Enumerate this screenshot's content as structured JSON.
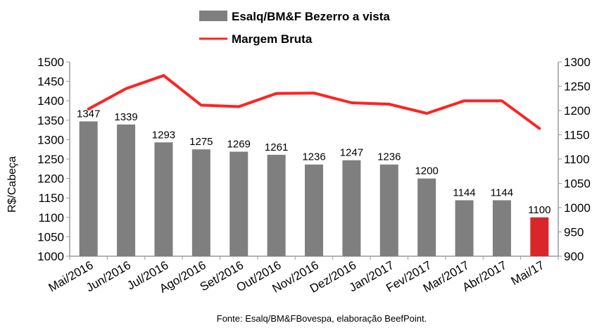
{
  "chart_data": {
    "type": "bar",
    "categories": [
      "Mai/2016",
      "Jun/2016",
      "Jul/2016",
      "Ago/2016",
      "Set/2016",
      "Out/2016",
      "Nov/2016",
      "Dez/2016",
      "Jan/2017",
      "Fev/2017",
      "Mar/2017",
      "Abr/2017",
      "Mai/17"
    ],
    "series": [
      {
        "name": "Esalq/BM&F Bezerro a vista",
        "kind": "bar",
        "axis": "left",
        "color": "#7f7f7f",
        "highlight_color": "#d9262b",
        "highlight_index": 12,
        "values": [
          1347,
          1339,
          1293,
          1275,
          1269,
          1261,
          1236,
          1247,
          1236,
          1200,
          1144,
          1144,
          1100
        ]
      },
      {
        "name": "Margem Bruta",
        "kind": "line",
        "axis": "right",
        "color": "#ff2222",
        "values": [
          1203,
          1245,
          1272,
          1211,
          1208,
          1235,
          1236,
          1216,
          1213,
          1194,
          1220,
          1220,
          1163
        ]
      }
    ],
    "ylabel": "R$/Cabeça",
    "ylim": [
      1000,
      1500
    ],
    "yticks": [
      1000,
      1050,
      1100,
      1150,
      1200,
      1250,
      1300,
      1350,
      1400,
      1450,
      1500
    ],
    "y2lim": [
      900,
      1300
    ],
    "y2ticks": [
      900,
      950,
      1000,
      1050,
      1100,
      1150,
      1200,
      1250,
      1300
    ],
    "legend_position": "top",
    "source": "Fonte: Esalq/BM&FBovespa, elaboração BeefPoint.",
    "grid": false
  }
}
